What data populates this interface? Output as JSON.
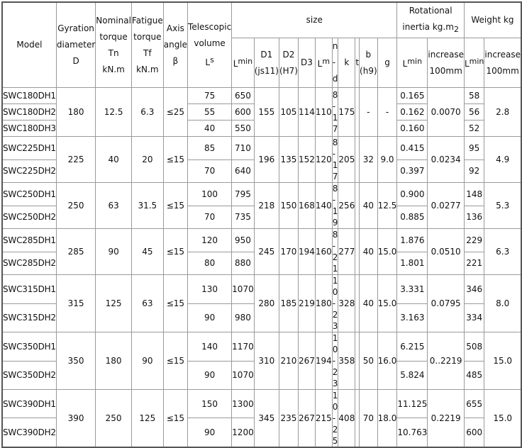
{
  "header": {
    "model": "Model",
    "gyration": [
      "Gyration",
      "diameter",
      "D"
    ],
    "nominal": [
      "Nominal",
      "torque",
      "Tn",
      "kN.m"
    ],
    "fatigue": [
      "Fatigue",
      "torque",
      "Tf",
      "kN.m"
    ],
    "axis": [
      "Axis",
      "angle",
      "β"
    ],
    "telescopic": [
      "Telescopic",
      "volume"
    ],
    "telescopic_sym": {
      "base": "L",
      "sup": "s"
    },
    "size": "size",
    "rotational": [
      "Rotational",
      "inertia kg.m",
      "2"
    ],
    "weight": "Weight kg",
    "lmin": {
      "base": "L",
      "sup": "min"
    },
    "d1": [
      "D1",
      "(js11)"
    ],
    "d2": [
      "D2",
      "(H7)"
    ],
    "d3": "D3",
    "lm": {
      "base": "L",
      "sup": "m"
    },
    "nd": "n-d",
    "k": "k",
    "t": "t",
    "b": [
      "b",
      "(h9)"
    ],
    "g": "g",
    "increase": [
      "increase",
      "100mm"
    ]
  },
  "groups": [
    {
      "D": "180",
      "Tn": "12.5",
      "Tf": "6.3",
      "angle": "≤25",
      "D1": "155",
      "D2": "105",
      "D3": "114",
      "Lm": "110",
      "nd": "8-17",
      "k": "175",
      "b": "-",
      "g": "-",
      "inertia_increase": "0.0070",
      "weight_increase": "2.8",
      "rows": [
        {
          "model": "SWC180DH1",
          "Ls": "75",
          "Lmin": "650",
          "inertia_min": "0.165",
          "weight_min": "58"
        },
        {
          "model": "SWC180DH2",
          "Ls": "55",
          "Lmin": "600",
          "inertia_min": "0.162",
          "weight_min": "56"
        },
        {
          "model": "SWC180DH3",
          "Ls": "40",
          "Lmin": "550",
          "inertia_min": "0.160",
          "weight_min": "52"
        }
      ]
    },
    {
      "D": "225",
      "Tn": "40",
      "Tf": "20",
      "angle": "≤15",
      "D1": "196",
      "D2": "135",
      "D3": "152",
      "Lm": "120",
      "nd": "8-17",
      "k": "205",
      "b": "32",
      "g": "9.0",
      "inertia_increase": "0.0234",
      "weight_increase": "4.9",
      "rows": [
        {
          "model": "SWC225DH1",
          "Ls": "85",
          "Lmin": "710",
          "inertia_min": "0.415",
          "weight_min": "95"
        },
        {
          "model": "SWC225DH2",
          "Ls": "70",
          "Lmin": "640",
          "inertia_min": "0.397",
          "weight_min": "92"
        }
      ]
    },
    {
      "D": "250",
      "Tn": "63",
      "Tf": "31.5",
      "angle": "≤15",
      "D1": "218",
      "D2": "150",
      "D3": "168",
      "Lm": "140",
      "nd": "8-19",
      "k": "256",
      "b": "40",
      "g": "12.5",
      "inertia_increase": "0.0277",
      "weight_increase": "5.3",
      "rows": [
        {
          "model": "SWC250DH1",
          "Ls": "100",
          "Lmin": "795",
          "inertia_min": "0.900",
          "weight_min": "148"
        },
        {
          "model": "SWC250DH2",
          "Ls": "70",
          "Lmin": "735",
          "inertia_min": "0.885",
          "weight_min": "136"
        }
      ]
    },
    {
      "D": "285",
      "Tn": "90",
      "Tf": "45",
      "angle": "≤15",
      "D1": "245",
      "D2": "170",
      "D3": "194",
      "Lm": "160",
      "nd": "8-21",
      "k": "277",
      "b": "40",
      "g": "15.0",
      "inertia_increase": "0.0510",
      "weight_increase": "6.3",
      "rows": [
        {
          "model": "SWC285DH1",
          "Ls": "120",
          "Lmin": "950",
          "inertia_min": "1.876",
          "weight_min": "229"
        },
        {
          "model": "SWC285DH2",
          "Ls": "80",
          "Lmin": "880",
          "inertia_min": "1.801",
          "weight_min": "221"
        }
      ]
    },
    {
      "D": "315",
      "Tn": "125",
      "Tf": "63",
      "angle": "≤15",
      "D1": "280",
      "D2": "185",
      "D3": "219",
      "Lm": "180",
      "nd": "10-23",
      "k": "328",
      "b": "40",
      "g": "15.0",
      "inertia_increase": "0.0795",
      "weight_increase": "8.0",
      "rows": [
        {
          "model": "SWC315DH1",
          "Ls": "130",
          "Lmin": "1070",
          "inertia_min": "3.331",
          "weight_min": "346"
        },
        {
          "model": "SWC315DH2",
          "Ls": "90",
          "Lmin": "980",
          "inertia_min": "3.163",
          "weight_min": "334"
        }
      ]
    },
    {
      "D": "350",
      "Tn": "180",
      "Tf": "90",
      "angle": "≤15",
      "D1": "310",
      "D2": "210",
      "D3": "267",
      "Lm": "194",
      "nd": "10-23",
      "k": "358",
      "b": "50",
      "g": "16.0",
      "inertia_increase": "0..2219",
      "weight_increase": "15.0",
      "rows": [
        {
          "model": "SWC350DH1",
          "Ls": "140",
          "Lmin": "1170",
          "inertia_min": "6.215",
          "weight_min": "508"
        },
        {
          "model": "SWC350DH2",
          "Ls": "90",
          "Lmin": "1070",
          "inertia_min": "5.824",
          "weight_min": "485"
        }
      ]
    },
    {
      "D": "390",
      "Tn": "250",
      "Tf": "125",
      "angle": "≤15",
      "D1": "345",
      "D2": "235",
      "D3": "267",
      "Lm": "215",
      "nd": "10-25",
      "k": "408",
      "b": "70",
      "g": "18.0",
      "inertia_increase": "0.2219",
      "weight_increase": "15.0",
      "rows": [
        {
          "model": "SWC390DH1",
          "Ls": "150",
          "Lmin": "1300",
          "inertia_min": "11.125",
          "weight_min": "655"
        },
        {
          "model": "SWC390DH2",
          "Ls": "90",
          "Lmin": "1200",
          "inertia_min": "10.763",
          "weight_min": "600"
        }
      ]
    }
  ]
}
